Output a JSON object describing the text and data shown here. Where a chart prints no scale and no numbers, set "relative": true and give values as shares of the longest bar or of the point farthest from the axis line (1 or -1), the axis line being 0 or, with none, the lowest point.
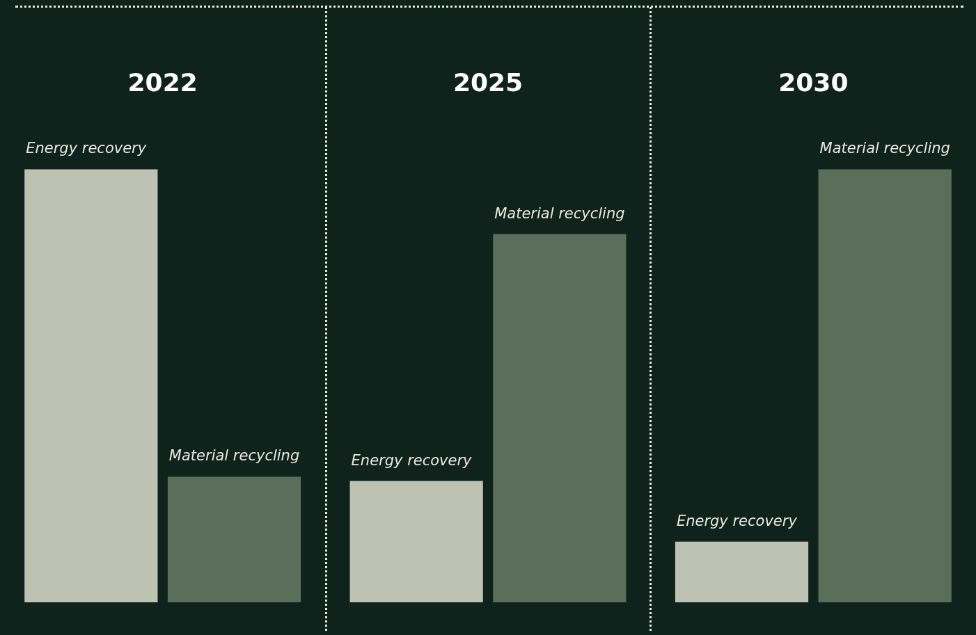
{
  "chart_data": {
    "type": "bar",
    "relative": true,
    "categories": [
      "2022",
      "2025",
      "2030"
    ],
    "series": [
      {
        "name": "Energy recovery",
        "color": "#bec2b3",
        "values": [
          1,
          0.28,
          0.14
        ]
      },
      {
        "name": "Material recycling",
        "color": "#5b6e5a",
        "values": [
          0.29,
          0.85,
          1
        ]
      }
    ],
    "legend": false
  }
}
